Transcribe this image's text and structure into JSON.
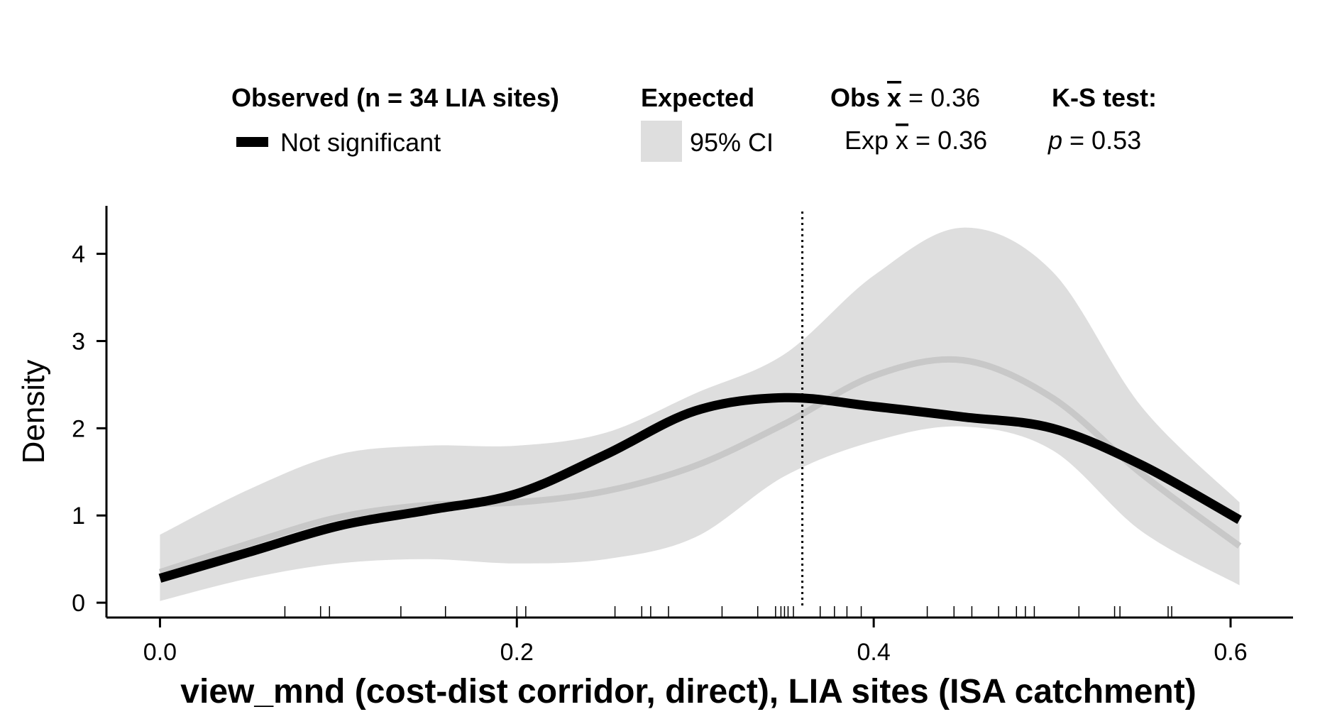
{
  "legend": {
    "observed_title": "Observed (n = 34 LIA sites)",
    "observed_item": "Not significant",
    "expected_title": "Expected",
    "expected_item": "95% CI",
    "obs_mean_prefix": "Obs ",
    "obs_mean_symbol": "x",
    "obs_mean_value": " = 0.36",
    "exp_mean_prefix": "Exp ",
    "exp_mean_symbol": "x",
    "exp_mean_value": " = 0.36",
    "ks_title": "K-S test:",
    "ks_p_symbol": "p",
    "ks_p_value": " = 0.53"
  },
  "colors": {
    "observed": "#000000",
    "expected_line": "#c8c8c8",
    "ci_band": "#dedede",
    "mean_line": "#000000"
  },
  "chart_data": {
    "type": "line",
    "xlabel": "view_mnd (cost-dist corridor, direct), LIA sites (ISA catchment)",
    "ylabel": "Density",
    "xlim": [
      -0.03,
      0.635
    ],
    "ylim": [
      -0.17,
      4.55
    ],
    "x_ticks": [
      0.0,
      0.2,
      0.4,
      0.6
    ],
    "x_tick_labels": [
      "0.0",
      "0.2",
      "0.4",
      "0.6"
    ],
    "y_ticks": [
      0,
      1,
      2,
      3,
      4
    ],
    "y_tick_labels": [
      "0",
      "1",
      "2",
      "3",
      "4"
    ],
    "grid": false,
    "legend_position": "top",
    "x": [
      0.0,
      0.05,
      0.1,
      0.15,
      0.2,
      0.25,
      0.3,
      0.35,
      0.4,
      0.45,
      0.5,
      0.55,
      0.605
    ],
    "observed": [
      0.28,
      0.58,
      0.88,
      1.06,
      1.25,
      1.7,
      2.2,
      2.35,
      2.25,
      2.13,
      2.0,
      1.58,
      0.95
    ],
    "expected_mean": [
      0.35,
      0.68,
      0.98,
      1.12,
      1.15,
      1.28,
      1.57,
      2.05,
      2.6,
      2.78,
      2.35,
      1.48,
      0.65
    ],
    "ci_lower": [
      0.02,
      0.28,
      0.45,
      0.5,
      0.45,
      0.5,
      0.75,
      1.45,
      1.85,
      2.02,
      1.75,
      0.82,
      0.2
    ],
    "ci_upper": [
      0.78,
      1.3,
      1.7,
      1.8,
      1.8,
      1.95,
      2.4,
      2.85,
      3.75,
      4.3,
      3.8,
      2.25,
      1.15
    ],
    "mean_line_x": 0.36,
    "rug": [
      0.07,
      0.09,
      0.095,
      0.135,
      0.16,
      0.2,
      0.205,
      0.255,
      0.27,
      0.275,
      0.285,
      0.315,
      0.335,
      0.345,
      0.348,
      0.35,
      0.352,
      0.355,
      0.37,
      0.378,
      0.385,
      0.393,
      0.43,
      0.445,
      0.455,
      0.47,
      0.48,
      0.485,
      0.49,
      0.515,
      0.535,
      0.538,
      0.565,
      0.567
    ]
  }
}
